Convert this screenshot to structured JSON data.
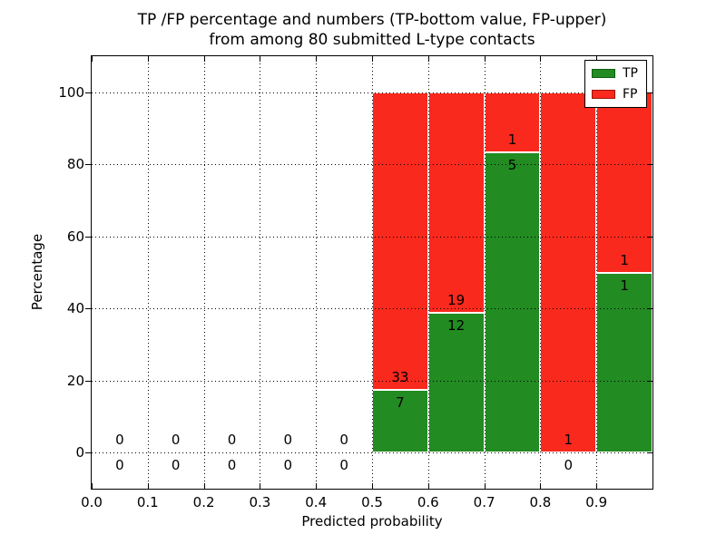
{
  "figure": {
    "title_line1": "TP /FP percentage and numbers (TP-bottom value, FP-upper)",
    "title_line2": "from among 80 submitted L-type contacts"
  },
  "chart_data": {
    "type": "bar",
    "stacked": true,
    "title": "TP /FP percentage and numbers (TP-bottom value, FP-upper)\nfrom among 80 submitted L-type contacts",
    "xlabel": "Predicted probability",
    "ylabel": "Percentage",
    "xlim": [
      0.0,
      1.0
    ],
    "ylim": [
      -10,
      110
    ],
    "grid": "dotted",
    "bin_edges": [
      0.0,
      0.1,
      0.2,
      0.3,
      0.4,
      0.5,
      0.6,
      0.7,
      0.8,
      0.9,
      1.0
    ],
    "xticks": {
      "values": [
        0.0,
        0.1,
        0.2,
        0.3,
        0.4,
        0.5,
        0.6,
        0.7,
        0.8,
        0.9
      ],
      "labels": [
        "0.0",
        "0.1",
        "0.2",
        "0.3",
        "0.4",
        "0.5",
        "0.6",
        "0.7",
        "0.8",
        "0.9"
      ]
    },
    "yticks": {
      "values": [
        0,
        20,
        40,
        60,
        80,
        100
      ],
      "labels": [
        "0",
        "20",
        "40",
        "60",
        "80",
        "100"
      ]
    },
    "series": [
      {
        "name": "TP",
        "color": "#228b22",
        "edge": "#ffffff",
        "counts": [
          0,
          0,
          0,
          0,
          0,
          7,
          12,
          5,
          0,
          1
        ]
      },
      {
        "name": "FP",
        "color": "#f9291d",
        "edge": "#ffffff",
        "counts": [
          0,
          0,
          0,
          0,
          0,
          33,
          19,
          1,
          1,
          1
        ]
      }
    ],
    "tp_percent_per_bin": [
      0,
      0,
      0,
      0,
      0,
      17.5,
      38.7,
      83.3,
      0,
      50.0
    ],
    "bars_span_percent": [
      0,
      100
    ],
    "total_contacts": 80,
    "legend": {
      "position": "upper right",
      "entries": [
        {
          "label": "TP",
          "color": "#228b22",
          "edge": "#0f5c0f"
        },
        {
          "label": "FP",
          "color": "#f9291d",
          "edge": "#9c120a"
        }
      ]
    }
  }
}
